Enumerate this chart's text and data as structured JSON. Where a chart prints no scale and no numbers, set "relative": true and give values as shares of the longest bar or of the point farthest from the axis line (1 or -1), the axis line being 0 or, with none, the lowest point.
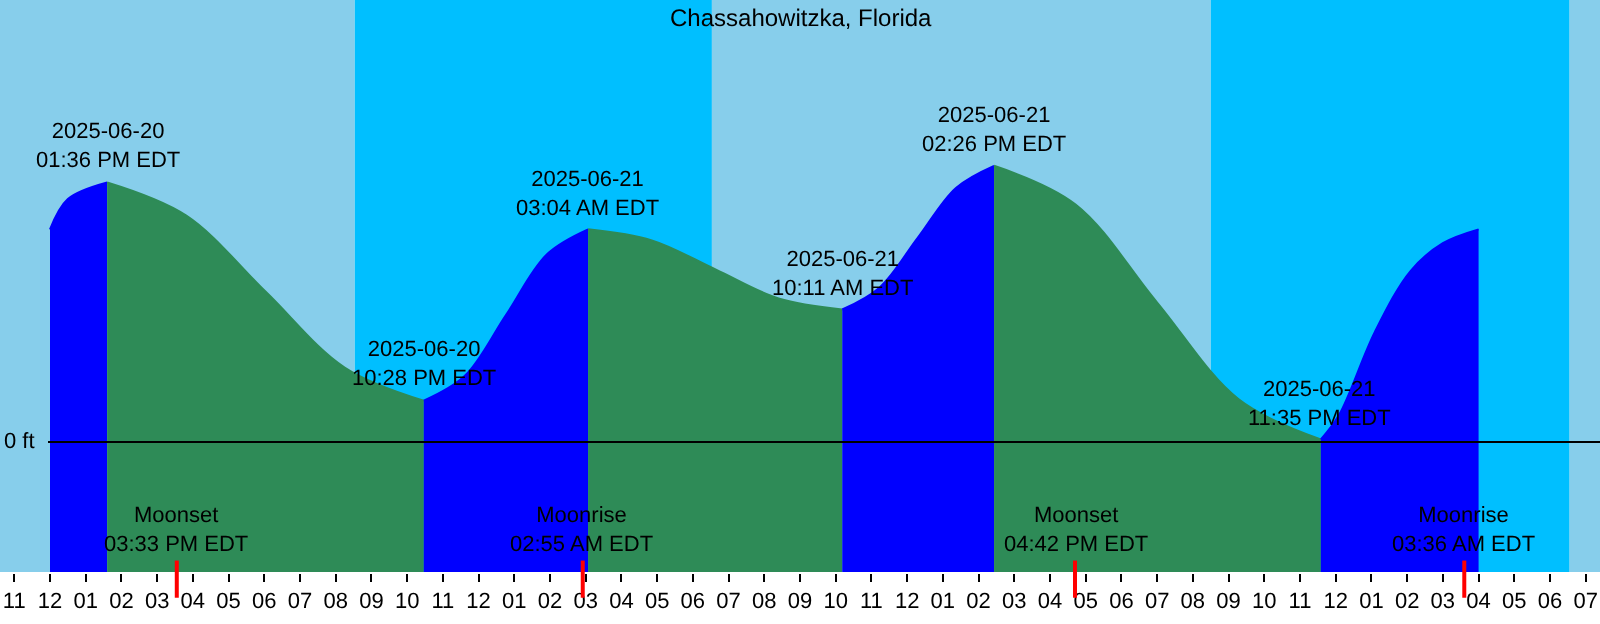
{
  "chart_data": {
    "type": "area",
    "title": "Chassahowitzka, Florida",
    "relative": true,
    "xlim": [
      "2025-06-20T10:36",
      "2025-06-22T07:24"
    ],
    "xticks": [
      {
        "value": "2025-06-20T11:00",
        "label": "11"
      },
      {
        "value": "2025-06-20T12:00",
        "label": "12"
      },
      {
        "value": "2025-06-20T13:00",
        "label": "01"
      },
      {
        "value": "2025-06-20T14:00",
        "label": "02"
      },
      {
        "value": "2025-06-20T15:00",
        "label": "03"
      },
      {
        "value": "2025-06-20T16:00",
        "label": "04"
      },
      {
        "value": "2025-06-20T17:00",
        "label": "05"
      },
      {
        "value": "2025-06-20T18:00",
        "label": "06"
      },
      {
        "value": "2025-06-20T19:00",
        "label": "07"
      },
      {
        "value": "2025-06-20T20:00",
        "label": "08"
      },
      {
        "value": "2025-06-20T21:00",
        "label": "09"
      },
      {
        "value": "2025-06-20T22:00",
        "label": "10"
      },
      {
        "value": "2025-06-20T23:00",
        "label": "11"
      },
      {
        "value": "2025-06-21T00:00",
        "label": "12"
      },
      {
        "value": "2025-06-21T01:00",
        "label": "01"
      },
      {
        "value": "2025-06-21T02:00",
        "label": "02"
      },
      {
        "value": "2025-06-21T03:00",
        "label": "03"
      },
      {
        "value": "2025-06-21T04:00",
        "label": "04"
      },
      {
        "value": "2025-06-21T05:00",
        "label": "05"
      },
      {
        "value": "2025-06-21T06:00",
        "label": "06"
      },
      {
        "value": "2025-06-21T07:00",
        "label": "07"
      },
      {
        "value": "2025-06-21T08:00",
        "label": "08"
      },
      {
        "value": "2025-06-21T09:00",
        "label": "09"
      },
      {
        "value": "2025-06-21T10:00",
        "label": "10"
      },
      {
        "value": "2025-06-21T11:00",
        "label": "11"
      },
      {
        "value": "2025-06-21T12:00",
        "label": "12"
      },
      {
        "value": "2025-06-21T13:00",
        "label": "01"
      },
      {
        "value": "2025-06-21T14:00",
        "label": "02"
      },
      {
        "value": "2025-06-21T15:00",
        "label": "03"
      },
      {
        "value": "2025-06-21T16:00",
        "label": "04"
      },
      {
        "value": "2025-06-21T17:00",
        "label": "05"
      },
      {
        "value": "2025-06-21T18:00",
        "label": "06"
      },
      {
        "value": "2025-06-21T19:00",
        "label": "07"
      },
      {
        "value": "2025-06-21T20:00",
        "label": "08"
      },
      {
        "value": "2025-06-21T21:00",
        "label": "09"
      },
      {
        "value": "2025-06-21T22:00",
        "label": "10"
      },
      {
        "value": "2025-06-21T23:00",
        "label": "11"
      },
      {
        "value": "2025-06-22T00:00",
        "label": "12"
      },
      {
        "value": "2025-06-22T01:00",
        "label": "01"
      },
      {
        "value": "2025-06-22T02:00",
        "label": "02"
      },
      {
        "value": "2025-06-22T03:00",
        "label": "03"
      },
      {
        "value": "2025-06-22T04:00",
        "label": "04"
      },
      {
        "value": "2025-06-22T05:00",
        "label": "05"
      },
      {
        "value": "2025-06-22T06:00",
        "label": "06"
      },
      {
        "value": "2025-06-22T07:00",
        "label": "07"
      }
    ],
    "bands": [
      {
        "axis": "x",
        "from": "2025-06-20T10:36",
        "to": "2025-06-20T20:32",
        "color": "#87ceeb"
      },
      {
        "axis": "x",
        "from": "2025-06-20T20:32",
        "to": "2025-06-21T06:32",
        "color": "#00bfff"
      },
      {
        "axis": "x",
        "from": "2025-06-21T06:32",
        "to": "2025-06-21T20:30",
        "color": "#87ceeb"
      },
      {
        "axis": "x",
        "from": "2025-06-21T20:30",
        "to": "2025-06-22T06:33",
        "color": "#00bfff"
      },
      {
        "axis": "x",
        "from": "2025-06-22T06:33",
        "to": "2025-06-22T07:24",
        "color": "#87ceeb"
      }
    ],
    "ref_lines": [
      {
        "axis": "y",
        "value": 0,
        "label": "0 ft",
        "color": "#000000"
      },
      {
        "axis": "x",
        "value": "2025-06-20T15:33",
        "label": "Moonset\n03:33 PM EDT",
        "color": "#ff0000"
      },
      {
        "axis": "x",
        "value": "2025-06-21T02:55",
        "label": "Moonrise\n02:55 AM EDT",
        "color": "#ff0000"
      },
      {
        "axis": "x",
        "value": "2025-06-21T16:42",
        "label": "Moonset\n04:42 PM EDT",
        "color": "#ff0000"
      },
      {
        "axis": "x",
        "value": "2025-06-22T03:36",
        "label": "Moonrise\n03:36 AM EDT",
        "color": "#ff0000"
      }
    ],
    "series": [
      {
        "color": "#0000ff",
        "x": [
          "2025-06-20T12:00",
          "2025-06-20T12:30",
          "2025-06-20T13:36"
        ],
        "values": [
          0.77,
          0.88,
          0.94
        ]
      },
      {
        "color": "#2e8b57",
        "x": [
          "2025-06-20T13:36",
          "2025-06-20T15:49",
          "2025-06-20T18:02",
          "2025-06-20T20:15",
          "2025-06-20T22:28"
        ],
        "values": [
          0.94,
          0.82,
          0.545,
          0.27,
          0.15
        ]
      },
      {
        "color": "#0000ff",
        "x": [
          "2025-06-20T22:28",
          "2025-06-20T23:37",
          "2025-06-21T00:46",
          "2025-06-21T01:55",
          "2025-06-21T03:04"
        ],
        "values": [
          0.15,
          0.24,
          0.46,
          0.68,
          0.77
        ]
      },
      {
        "color": "#2e8b57",
        "x": [
          "2025-06-21T03:04",
          "2025-06-21T04:51",
          "2025-06-21T06:38",
          "2025-06-21T08:24",
          "2025-06-21T10:11"
        ],
        "values": [
          0.77,
          0.73,
          0.625,
          0.52,
          0.48
        ]
      },
      {
        "color": "#0000ff",
        "x": [
          "2025-06-21T10:11",
          "2025-06-21T11:14",
          "2025-06-21T12:18",
          "2025-06-21T13:22",
          "2025-06-21T14:26"
        ],
        "values": [
          0.48,
          0.56,
          0.74,
          0.92,
          1
        ]
      },
      {
        "color": "#2e8b57",
        "x": [
          "2025-06-21T14:26",
          "2025-06-21T16:43",
          "2025-06-21T19:00",
          "2025-06-21T21:17",
          "2025-06-21T23:35"
        ],
        "values": [
          1,
          0.86,
          0.505,
          0.155,
          0.01
        ]
      },
      {
        "color": "#0000ff",
        "x": [
          "2025-06-21T23:35",
          "2025-06-22T00:06",
          "2025-06-22T01:06",
          "2025-06-22T02:06",
          "2025-06-22T03:00",
          "2025-06-22T04:00"
        ],
        "values": [
          0.01,
          0.1,
          0.4,
          0.62,
          0.72,
          0.77
        ]
      }
    ],
    "annotations": [
      {
        "text": "2025-06-20\n01:36 PM EDT",
        "x": "2025-06-20T13:36",
        "y": 0.94
      },
      {
        "text": "2025-06-20\n10:28 PM EDT",
        "x": "2025-06-20T22:28",
        "y": 0.15
      },
      {
        "text": "2025-06-21\n03:04 AM EDT",
        "x": "2025-06-21T03:04",
        "y": 0.77
      },
      {
        "text": "2025-06-21\n10:11 AM EDT",
        "x": "2025-06-21T10:11",
        "y": 0.48
      },
      {
        "text": "2025-06-21\n02:26 PM EDT",
        "x": "2025-06-21T14:26",
        "y": 1
      },
      {
        "text": "2025-06-21\n11:35 PM EDT",
        "x": "2025-06-21T23:35",
        "y": 0.01
      }
    ]
  }
}
